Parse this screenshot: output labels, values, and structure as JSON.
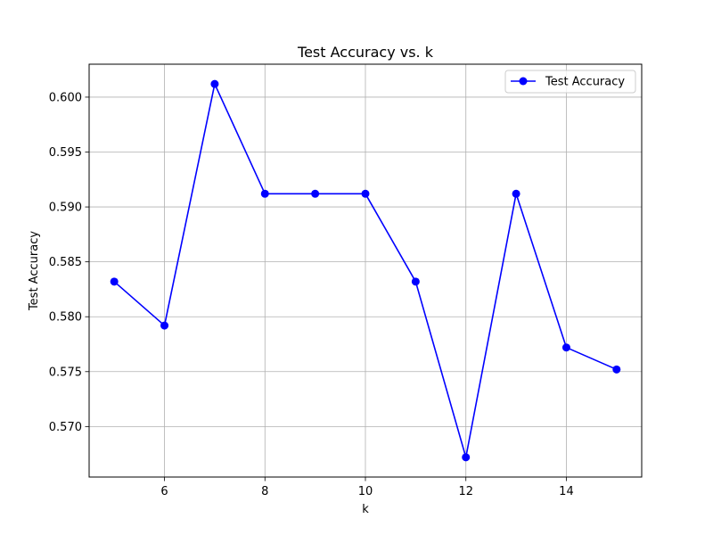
{
  "chart_data": {
    "type": "line",
    "title": "Test Accuracy vs. k",
    "xlabel": "k",
    "ylabel": "Test Accuracy",
    "x": [
      5,
      6,
      7,
      8,
      9,
      10,
      11,
      12,
      13,
      14,
      15
    ],
    "series": [
      {
        "name": "Test Accuracy",
        "values": [
          0.5832,
          0.5792,
          0.6012,
          0.5912,
          0.5912,
          0.5912,
          0.5832,
          0.5672,
          0.5912,
          0.5772,
          0.5752
        ],
        "color": "#0000ff",
        "marker": "circle"
      }
    ],
    "xlim": [
      4.5,
      15.5
    ],
    "ylim": [
      0.5654,
      0.603
    ],
    "xticks": [
      6,
      8,
      10,
      12,
      14
    ],
    "xtick_labels": [
      "6",
      "8",
      "10",
      "12",
      "14"
    ],
    "yticks": [
      0.57,
      0.575,
      0.58,
      0.585,
      0.59,
      0.595,
      0.6
    ],
    "ytick_labels": [
      "0.570",
      "0.575",
      "0.580",
      "0.585",
      "0.590",
      "0.595",
      "0.600"
    ],
    "grid": true,
    "legend_position": "upper-right"
  }
}
